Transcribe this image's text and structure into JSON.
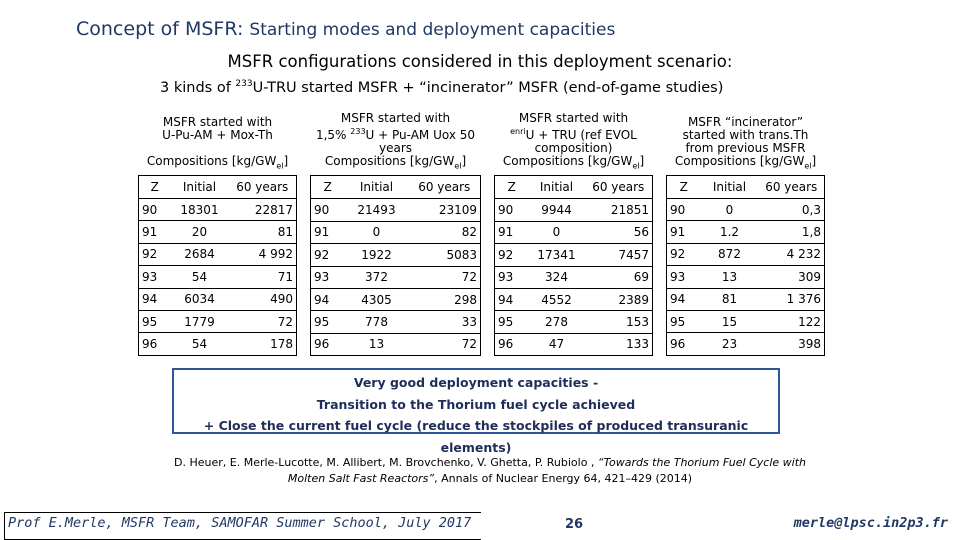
{
  "title": {
    "main": "Concept of MSFR:",
    "sub": "Starting modes and deployment capacities"
  },
  "subtitle": "MSFR configurations considered in this deployment scenario:",
  "kinds_line": {
    "pre": "3 kinds of ",
    "sup": "233",
    "post": "U-TRU started MSFR + “incinerator” MSFR (end-of-game studies)"
  },
  "tables": [
    {
      "header_lines": [
        "MSFR started with",
        "U-Pu-AM + Mox-Th"
      ],
      "comp": "Compositions [kg/GW",
      "comp_sub": "el",
      "cols": [
        "Z",
        "Initial",
        "60 years"
      ],
      "rows": [
        [
          "90",
          "18301",
          "22817"
        ],
        [
          "91",
          "20",
          "81"
        ],
        [
          "92",
          "2684",
          "4 992"
        ],
        [
          "93",
          "54",
          "71"
        ],
        [
          "94",
          "6034",
          "490"
        ],
        [
          "95",
          "1779",
          "72"
        ],
        [
          "96",
          "54",
          "178"
        ]
      ]
    },
    {
      "header_lines": [
        "MSFR started with",
        "1,5% 233U + Pu-AM Uox 50",
        "years"
      ],
      "comp": "Compositions [kg/GW",
      "comp_sub": "el",
      "cols": [
        "Z",
        "Initial",
        "60 years"
      ],
      "rows": [
        [
          "90",
          "21493",
          "23109"
        ],
        [
          "91",
          "0",
          "82"
        ],
        [
          "92",
          "1922",
          "5083"
        ],
        [
          "93",
          "372",
          "72"
        ],
        [
          "94",
          "4305",
          "298"
        ],
        [
          "95",
          "778",
          "33"
        ],
        [
          "96",
          "13",
          "72"
        ]
      ]
    },
    {
      "header_lines": [
        "MSFR started with",
        "enriU + TRU (ref EVOL",
        "composition)"
      ],
      "comp": "Compositions [kg/GW",
      "comp_sub": "el",
      "cols": [
        "Z",
        "Initial",
        "60 years"
      ],
      "rows": [
        [
          "90",
          "9944",
          "21851"
        ],
        [
          "91",
          "0",
          "56"
        ],
        [
          "92",
          "17341",
          "7457"
        ],
        [
          "93",
          "324",
          "69"
        ],
        [
          "94",
          "4552",
          "2389"
        ],
        [
          "95",
          "278",
          "153"
        ],
        [
          "96",
          "47",
          "133"
        ]
      ]
    },
    {
      "header_lines": [
        "MSFR “incinerator”",
        "started with trans.Th",
        "from previous MSFR"
      ],
      "comp": "Compositions [kg/GW",
      "comp_sub": "el",
      "cols": [
        "Z",
        "Initial",
        "60 years"
      ],
      "rows": [
        [
          "90",
          "0",
          "0,3"
        ],
        [
          "91",
          "1.2",
          "1,8"
        ],
        [
          "92",
          "872",
          "4 232"
        ],
        [
          "93",
          "13",
          "309"
        ],
        [
          "94",
          "81",
          "1 376"
        ],
        [
          "95",
          "15",
          "122"
        ],
        [
          "96",
          "23",
          "398"
        ]
      ]
    }
  ],
  "conclusion": {
    "line1": "Very good deployment capacities -",
    "line2": "Transition to the Thorium fuel cycle achieved",
    "line3": "+ Close the current fuel cycle (reduce the stockpiles of produced transuranic elements)"
  },
  "reference": {
    "authors": "D. Heuer, E. Merle-Lucotte, M. Allibert, M. Brovchenko, V. Ghetta, P. Rubiolo , ",
    "title": "“Towards the Thorium Fuel Cycle with Molten Salt Fast Reactors”",
    "journal": ",  Annals of Nuclear Energy 64, 421–429 (2014)"
  },
  "footer": {
    "left": "Prof E.Merle, MSFR Team, SAMOFAR Summer School, July 2017",
    "page": "26",
    "email": "merle@lpsc.in2p3.fr"
  }
}
